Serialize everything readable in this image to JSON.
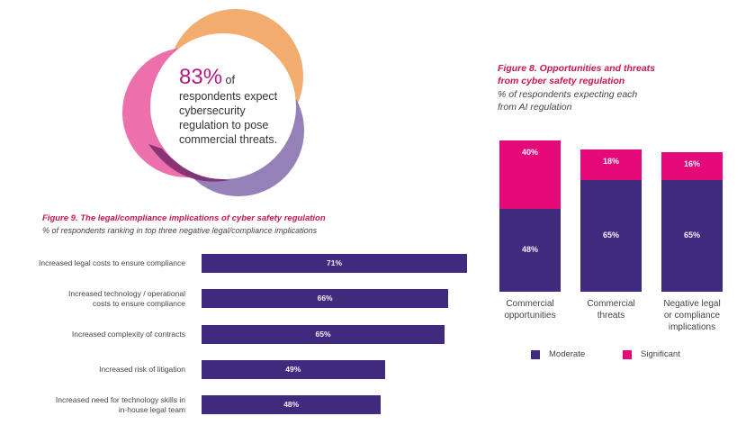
{
  "stat_callout": {
    "value": "83%",
    "suffix": "of",
    "lines": [
      "respondents expect",
      "cybersecurity",
      "regulation to pose",
      "commercial threats."
    ],
    "colors": {
      "value": "#b5197c",
      "ring_orange": "#f0a35e",
      "ring_pink": "#e9579e",
      "ring_red": "#e0373f",
      "ring_purple": "#8a72b0",
      "ring_plum": "#7a2a6c",
      "ring_brown": "#8e4a40"
    }
  },
  "chart_data": [
    {
      "id": "figure-9",
      "type": "bar",
      "orientation": "horizontal",
      "title": "Figure 9. The legal/compliance implications of cyber safety regulation",
      "subtitle": "% of respondents ranking in top three negative legal/compliance implications",
      "categories": [
        [
          "Increased legal costs to ensure compliance"
        ],
        [
          "Increased technology / operational",
          "costs to ensure compliance"
        ],
        [
          "Increased complexity of contracts"
        ],
        [
          "Increased risk of litigation"
        ],
        [
          "Increased need for technology skills in",
          "in-house legal team"
        ]
      ],
      "values": [
        71,
        66,
        65,
        49,
        48
      ],
      "value_labels": [
        "71%",
        "66%",
        "65%",
        "49%",
        "48%"
      ],
      "unit": "%",
      "xlim": [
        0,
        71
      ],
      "grid": false,
      "color": "#3f2a7d"
    },
    {
      "id": "figure-8",
      "type": "bar",
      "orientation": "vertical",
      "stacked": true,
      "title": "Figure 8. Opportunities and threats from cyber safety regulation",
      "title_lines": [
        "Figure 8. Opportunities and threats",
        "from cyber safety regulation"
      ],
      "subtitle_lines": [
        "% of respondents expecting each",
        "from AI regulation"
      ],
      "categories": [
        [
          "Commercial",
          "opportunities"
        ],
        [
          "Commercial",
          "threats"
        ],
        [
          "Negative legal",
          "or compliance",
          "implications"
        ]
      ],
      "series": [
        {
          "name": "Moderate",
          "values": [
            48,
            65,
            65
          ],
          "labels": [
            "48%",
            "65%",
            "65%"
          ],
          "color": "#3f2a7d"
        },
        {
          "name": "Significant",
          "values": [
            40,
            18,
            16
          ],
          "labels": [
            "40%",
            "18%",
            "16%"
          ],
          "color": "#e6097a"
        }
      ],
      "ylim": [
        0,
        88
      ],
      "grid": false,
      "legend": {
        "position": "bottom",
        "items": [
          "Moderate",
          "Significant"
        ]
      }
    }
  ]
}
